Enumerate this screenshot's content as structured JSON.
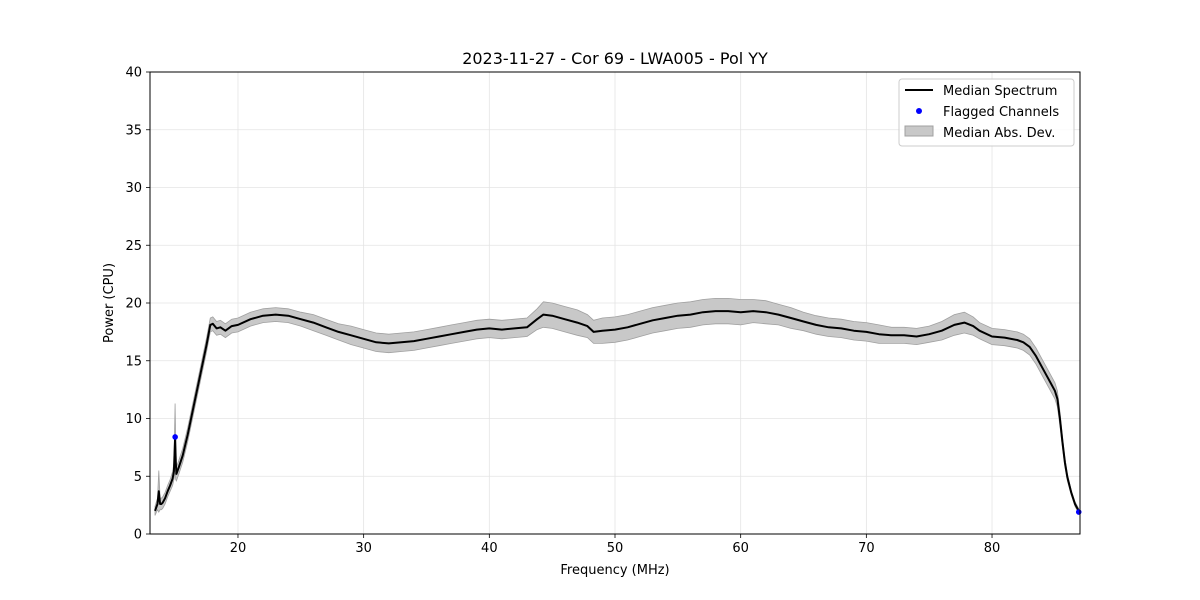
{
  "chart_data": {
    "type": "line",
    "title": "2023-11-27 - Cor 69 - LWA005 - Pol YY",
    "xlabel": "Frequency (MHz)",
    "ylabel": "Power (CPU)",
    "xlim": [
      13,
      87
    ],
    "ylim": [
      0,
      40
    ],
    "x_ticks": [
      20,
      30,
      40,
      50,
      60,
      70,
      80
    ],
    "y_ticks": [
      0,
      5,
      10,
      15,
      20,
      25,
      30,
      35,
      40
    ],
    "grid": true,
    "legend_position": "top-right",
    "legend": [
      "Median Spectrum",
      "Flagged Channels",
      "Median Abs. Dev."
    ],
    "colors": {
      "median": "#000000",
      "flagged": "#0000ff",
      "band": "#c8c8c8",
      "band_edge": "#a0a0a0"
    },
    "series": [
      {
        "name": "Median Spectrum",
        "x": [
          13.4,
          13.6,
          13.7,
          13.8,
          13.9,
          14.0,
          14.2,
          14.4,
          14.6,
          14.8,
          14.9,
          15.0,
          15.05,
          15.1,
          15.3,
          15.6,
          16.0,
          16.5,
          17.0,
          17.5,
          17.8,
          18.0,
          18.3,
          18.6,
          19.0,
          19.5,
          20.0,
          21.0,
          22.0,
          23.0,
          24.0,
          25.0,
          26.0,
          27.0,
          28.0,
          29.0,
          30.0,
          31.0,
          32.0,
          33.0,
          34.0,
          35.0,
          36.0,
          37.0,
          38.0,
          39.0,
          40.0,
          41.0,
          42.0,
          43.0,
          43.8,
          44.3,
          45.0,
          46.0,
          47.0,
          47.8,
          48.3,
          49.0,
          50.0,
          51.0,
          52.0,
          53.0,
          54.0,
          55.0,
          56.0,
          57.0,
          58.0,
          59.0,
          60.0,
          61.0,
          62.0,
          63.0,
          64.0,
          65.0,
          66.0,
          67.0,
          68.0,
          69.0,
          70.0,
          71.0,
          72.0,
          73.0,
          74.0,
          75.0,
          76.0,
          77.0,
          77.8,
          78.5,
          79.0,
          80.0,
          81.0,
          82.0,
          82.5,
          83.0,
          83.5,
          84.0,
          84.5,
          85.0,
          85.2,
          85.4,
          85.6,
          85.8,
          86.0,
          86.3,
          86.6,
          86.9
        ],
        "y": [
          2.0,
          2.6,
          3.7,
          2.6,
          2.6,
          2.7,
          3.1,
          3.7,
          4.2,
          4.8,
          5.4,
          8.3,
          6.2,
          5.2,
          5.8,
          6.8,
          8.6,
          11.2,
          13.8,
          16.4,
          18.1,
          18.2,
          17.8,
          17.9,
          17.6,
          18.0,
          18.1,
          18.6,
          18.9,
          19.0,
          18.9,
          18.6,
          18.3,
          17.9,
          17.5,
          17.2,
          16.9,
          16.6,
          16.5,
          16.6,
          16.7,
          16.9,
          17.1,
          17.3,
          17.5,
          17.7,
          17.8,
          17.7,
          17.8,
          17.9,
          18.6,
          19.0,
          18.9,
          18.6,
          18.3,
          18.0,
          17.5,
          17.6,
          17.7,
          17.9,
          18.2,
          18.5,
          18.7,
          18.9,
          19.0,
          19.2,
          19.3,
          19.3,
          19.2,
          19.3,
          19.2,
          19.0,
          18.7,
          18.4,
          18.1,
          17.9,
          17.8,
          17.6,
          17.5,
          17.3,
          17.2,
          17.2,
          17.1,
          17.3,
          17.6,
          18.1,
          18.3,
          18.0,
          17.6,
          17.1,
          17.0,
          16.8,
          16.6,
          16.2,
          15.4,
          14.4,
          13.4,
          12.4,
          11.7,
          10.0,
          8.0,
          6.2,
          4.9,
          3.6,
          2.6,
          2.0
        ]
      }
    ],
    "band_halfwidth": [
      0.4,
      0.5,
      1.8,
      0.5,
      0.5,
      0.5,
      0.5,
      0.5,
      0.5,
      0.6,
      0.7,
      3.0,
      1.5,
      0.6,
      0.6,
      0.6,
      0.6,
      0.6,
      0.6,
      0.6,
      0.6,
      0.6,
      0.6,
      0.6,
      0.6,
      0.6,
      0.6,
      0.6,
      0.6,
      0.6,
      0.6,
      0.6,
      0.7,
      0.7,
      0.7,
      0.8,
      0.8,
      0.8,
      0.8,
      0.8,
      0.8,
      0.8,
      0.8,
      0.8,
      0.8,
      0.8,
      0.8,
      0.8,
      0.8,
      0.8,
      0.9,
      1.1,
      1.1,
      1.1,
      1.1,
      1.0,
      1.0,
      1.1,
      1.1,
      1.1,
      1.1,
      1.1,
      1.1,
      1.1,
      1.1,
      1.1,
      1.1,
      1.1,
      1.1,
      1.0,
      1.0,
      0.9,
      0.9,
      0.8,
      0.8,
      0.8,
      0.8,
      0.8,
      0.8,
      0.8,
      0.7,
      0.7,
      0.7,
      0.7,
      0.8,
      0.9,
      0.9,
      0.8,
      0.7,
      0.7,
      0.7,
      0.7,
      0.7,
      0.7,
      0.7,
      0.7,
      0.7,
      0.7,
      0.7,
      0.6,
      0.5,
      0.4,
      0.3,
      0.2,
      0.2,
      0.2
    ],
    "flagged_channels": [
      {
        "x": 15.0,
        "y": 8.4
      },
      {
        "x": 86.9,
        "y": 1.9
      }
    ]
  }
}
